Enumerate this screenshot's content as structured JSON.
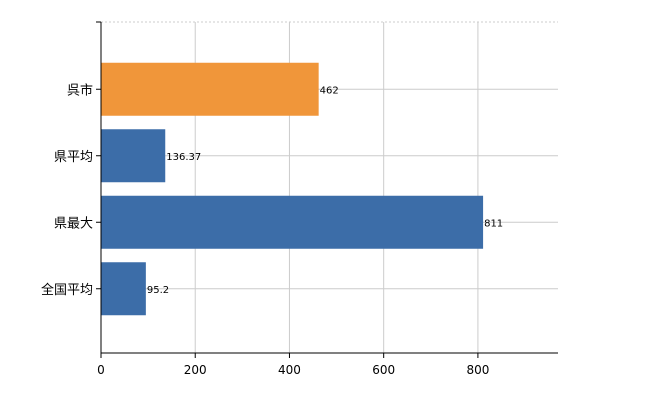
{
  "chart_data": {
    "type": "bar",
    "orientation": "horizontal",
    "categories": [
      "呉市",
      "県平均",
      "県最大",
      "全国平均"
    ],
    "values": [
      462,
      136.37,
      811,
      95.2
    ],
    "value_labels": [
      "462",
      "136.37",
      "811",
      "95.2"
    ],
    "colors": [
      "#f0963a",
      "#3c6da8",
      "#3c6da8",
      "#3c6da8"
    ],
    "xlim": [
      0,
      970
    ],
    "x_ticks": [
      0,
      200,
      400,
      600,
      800
    ],
    "x_tick_labels": [
      "0",
      "200",
      "400",
      "600",
      "800"
    ],
    "grid": true,
    "title": "",
    "xlabel": "",
    "ylabel": ""
  }
}
